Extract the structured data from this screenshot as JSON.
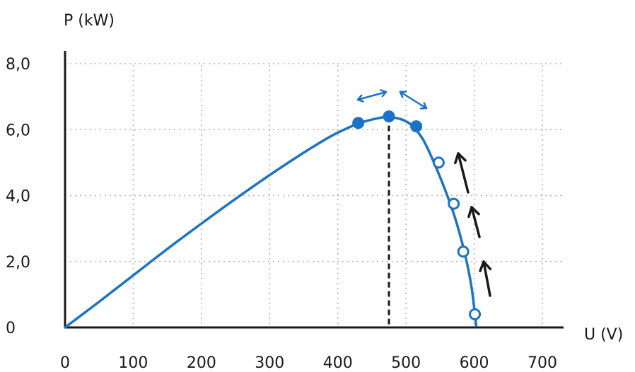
{
  "colors": {
    "curve": "#1a73c7",
    "axis": "#1a1a1a",
    "grid": "#b5b5b5"
  },
  "chart_data": {
    "type": "line",
    "title": "",
    "xlabel": "U (V)",
    "ylabel": "P (kW)",
    "xlim": [
      0,
      700
    ],
    "ylim": [
      0,
      8
    ],
    "x_ticks": [
      0,
      100,
      200,
      300,
      400,
      500,
      600,
      700
    ],
    "x_tick_labels": [
      "0",
      "100",
      "200",
      "300",
      "400",
      "500",
      "600",
      "700"
    ],
    "y_ticks": [
      0,
      2,
      4,
      6,
      8
    ],
    "y_tick_labels": [
      "0",
      "2,0",
      "4,0",
      "6,0",
      "8,0"
    ],
    "grid": true,
    "series": [
      {
        "type": "line",
        "x": [
          0,
          50,
          100,
          150,
          200,
          250,
          300,
          350,
          390,
          420,
          440,
          460,
          470,
          480,
          490,
          500,
          510,
          525,
          540,
          555,
          570,
          580,
          590,
          597,
          603
        ],
        "y": [
          0,
          0.78,
          1.58,
          2.38,
          3.15,
          3.9,
          4.62,
          5.3,
          5.8,
          6.1,
          6.25,
          6.35,
          6.38,
          6.37,
          6.33,
          6.25,
          6.1,
          5.7,
          5.05,
          4.3,
          3.45,
          2.75,
          1.9,
          1.1,
          0.05
        ]
      }
    ],
    "points": [
      {
        "label": "filled",
        "x": 430,
        "y": 6.2,
        "filled": true
      },
      {
        "label": "filled",
        "x": 475,
        "y": 6.4,
        "filled": true
      },
      {
        "label": "filled",
        "x": 515,
        "y": 6.1,
        "filled": true
      },
      {
        "label": "open",
        "x": 548,
        "y": 5.0,
        "filled": false
      },
      {
        "label": "open",
        "x": 570,
        "y": 3.75,
        "filled": false
      },
      {
        "label": "open",
        "x": 584,
        "y": 2.3,
        "filled": false
      },
      {
        "label": "open",
        "x": 601,
        "y": 0.4,
        "filled": false
      }
    ],
    "mpp_x": 475
  }
}
